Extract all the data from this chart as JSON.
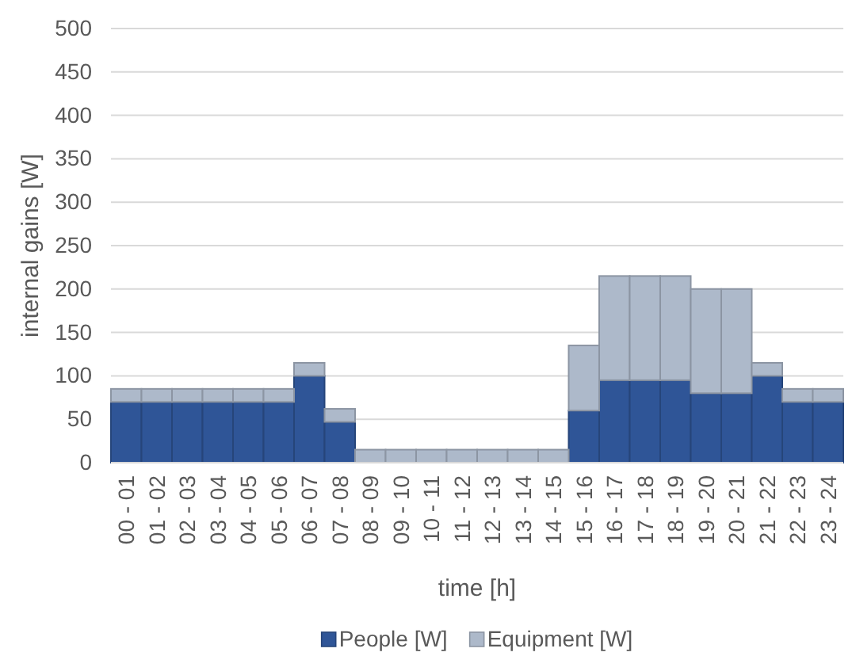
{
  "chart_data": {
    "type": "bar",
    "stacked": true,
    "xlabel": "time [h]",
    "ylabel": "internal gains [W]",
    "categories": [
      "00 - 01",
      "01 - 02",
      "02 - 03",
      "03 - 04",
      "04 - 05",
      "05 - 06",
      "06 - 07",
      "07 - 08",
      "08 - 09",
      "09 - 10",
      "10 - 11",
      "11 - 12",
      "12 - 13",
      "13 - 14",
      "14 - 15",
      "15 - 16",
      "16 - 17",
      "17 - 18",
      "18 - 19",
      "19 - 20",
      "20 - 21",
      "21 - 22",
      "22 - 23",
      "23 - 24"
    ],
    "series": [
      {
        "name": "People [W]",
        "color": "#2f5597",
        "values": [
          70,
          70,
          70,
          70,
          70,
          70,
          100,
          47,
          0,
          0,
          0,
          0,
          0,
          0,
          0,
          60,
          95,
          95,
          95,
          80,
          80,
          100,
          70,
          70
        ]
      },
      {
        "name": "Equipment [W]",
        "color": "#adb9ca",
        "values": [
          15,
          15,
          15,
          15,
          15,
          15,
          15,
          15,
          15,
          15,
          15,
          15,
          15,
          15,
          15,
          75,
          120,
          120,
          120,
          120,
          120,
          15,
          15,
          15
        ]
      }
    ],
    "ylim": [
      0,
      500
    ],
    "yticks": [
      0,
      50,
      100,
      150,
      200,
      250,
      300,
      350,
      400,
      450,
      500
    ],
    "grid": "y",
    "legend": "bottom"
  }
}
